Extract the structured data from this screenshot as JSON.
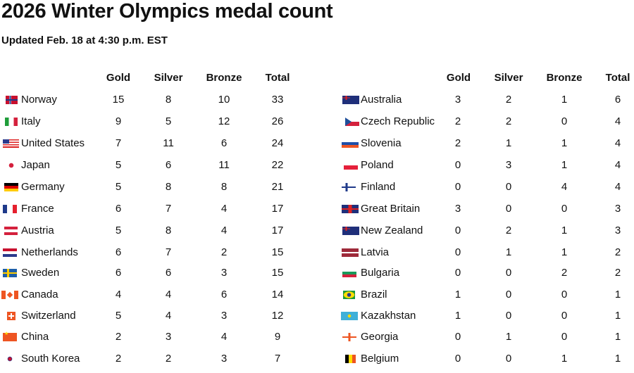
{
  "title": "2026 Winter Olympics medal count",
  "subtitle": "Updated Feb. 18 at 4:30 p.m. EST",
  "chart_data": {
    "type": "table",
    "title": "2026 Winter Olympics medal count",
    "columns": [
      "Gold",
      "Silver",
      "Bronze",
      "Total"
    ],
    "left_table": [
      {
        "country": "Norway",
        "flag": "norway-flag-icon",
        "cls": "norway",
        "values": [
          15,
          8,
          10,
          33
        ]
      },
      {
        "country": "Italy",
        "flag": "italy-flag-icon",
        "cls": "italy",
        "values": [
          9,
          5,
          12,
          26
        ]
      },
      {
        "country": "United States",
        "flag": "usa-flag-icon",
        "cls": "usa",
        "values": [
          7,
          11,
          6,
          24
        ]
      },
      {
        "country": "Japan",
        "flag": "japan-flag-icon",
        "cls": "japan",
        "values": [
          5,
          6,
          11,
          22
        ]
      },
      {
        "country": "Germany",
        "flag": "germany-flag-icon",
        "cls": "germany",
        "values": [
          5,
          8,
          8,
          21
        ]
      },
      {
        "country": "France",
        "flag": "france-flag-icon",
        "cls": "france",
        "values": [
          6,
          7,
          4,
          17
        ]
      },
      {
        "country": "Austria",
        "flag": "austria-flag-icon",
        "cls": "austria",
        "values": [
          5,
          8,
          4,
          17
        ]
      },
      {
        "country": "Netherlands",
        "flag": "netherlands-flag-icon",
        "cls": "netherlands",
        "values": [
          6,
          7,
          2,
          15
        ]
      },
      {
        "country": "Sweden",
        "flag": "sweden-flag-icon",
        "cls": "sweden",
        "values": [
          6,
          6,
          3,
          15
        ]
      },
      {
        "country": "Canada",
        "flag": "canada-flag-icon",
        "cls": "canada",
        "values": [
          4,
          4,
          6,
          14
        ]
      },
      {
        "country": "Switzerland",
        "flag": "switzerland-flag-icon",
        "cls": "switzerland",
        "values": [
          5,
          4,
          3,
          12
        ]
      },
      {
        "country": "China",
        "flag": "china-flag-icon",
        "cls": "china",
        "values": [
          2,
          3,
          4,
          9
        ]
      },
      {
        "country": "South Korea",
        "flag": "south-korea-flag-icon",
        "cls": "korea",
        "values": [
          2,
          2,
          3,
          7
        ]
      }
    ],
    "right_table": [
      {
        "country": "Australia",
        "flag": "australia-flag-icon",
        "cls": "australia",
        "values": [
          3,
          2,
          1,
          6
        ]
      },
      {
        "country": "Czech Republic",
        "flag": "czech-flag-icon",
        "cls": "czech",
        "values": [
          2,
          2,
          0,
          4
        ]
      },
      {
        "country": "Slovenia",
        "flag": "slovenia-flag-icon",
        "cls": "slovenia",
        "values": [
          2,
          1,
          1,
          4
        ]
      },
      {
        "country": "Poland",
        "flag": "poland-flag-icon",
        "cls": "poland",
        "values": [
          0,
          3,
          1,
          4
        ]
      },
      {
        "country": "Finland",
        "flag": "finland-flag-icon",
        "cls": "finland",
        "values": [
          0,
          0,
          4,
          4
        ]
      },
      {
        "country": "Great Britain",
        "flag": "great-britain-flag-icon",
        "cls": "gb",
        "values": [
          3,
          0,
          0,
          3
        ]
      },
      {
        "country": "New Zealand",
        "flag": "new-zealand-flag-icon",
        "cls": "newzealand",
        "values": [
          0,
          2,
          1,
          3
        ]
      },
      {
        "country": "Latvia",
        "flag": "latvia-flag-icon",
        "cls": "latvia",
        "values": [
          0,
          1,
          1,
          2
        ]
      },
      {
        "country": "Bulgaria",
        "flag": "bulgaria-flag-icon",
        "cls": "bulgaria",
        "values": [
          0,
          0,
          2,
          2
        ]
      },
      {
        "country": "Brazil",
        "flag": "brazil-flag-icon",
        "cls": "brazil",
        "values": [
          1,
          0,
          0,
          1
        ]
      },
      {
        "country": "Kazakhstan",
        "flag": "kazakhstan-flag-icon",
        "cls": "kazakhstan",
        "values": [
          1,
          0,
          0,
          1
        ]
      },
      {
        "country": "Georgia",
        "flag": "georgia-flag-icon",
        "cls": "georgia",
        "values": [
          0,
          1,
          0,
          1
        ]
      },
      {
        "country": "Belgium",
        "flag": "belgium-flag-icon",
        "cls": "belgium",
        "values": [
          0,
          0,
          1,
          1
        ]
      }
    ]
  }
}
